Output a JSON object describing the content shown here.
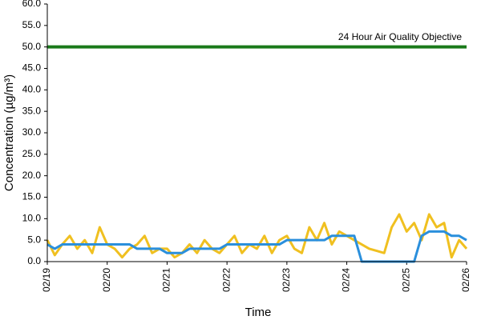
{
  "chart_data": {
    "type": "line",
    "x_label": "Time",
    "y_label": "Concentration (µg/m³)",
    "xlim": [
      0,
      7
    ],
    "xticks": [
      {
        "value": 0,
        "label": "02/19"
      },
      {
        "value": 1,
        "label": "02/20"
      },
      {
        "value": 2,
        "label": "02/21"
      },
      {
        "value": 3,
        "label": "02/22"
      },
      {
        "value": 4,
        "label": "02/23"
      },
      {
        "value": 5,
        "label": "02/24"
      },
      {
        "value": 6,
        "label": "02/25"
      },
      {
        "value": 7,
        "label": "02/26"
      }
    ],
    "ylim": [
      0,
      60
    ],
    "yticks": [
      {
        "value": 0,
        "label": "0.0"
      },
      {
        "value": 5,
        "label": "5.0"
      },
      {
        "value": 10,
        "label": "10.0"
      },
      {
        "value": 15,
        "label": "15.0"
      },
      {
        "value": 20,
        "label": "20.0"
      },
      {
        "value": 25,
        "label": "25.0"
      },
      {
        "value": 30,
        "label": "30.0"
      },
      {
        "value": 35,
        "label": "35.0"
      },
      {
        "value": 40,
        "label": "40.0"
      },
      {
        "value": 45,
        "label": "45.0"
      },
      {
        "value": 50,
        "label": "50.0"
      },
      {
        "value": 55,
        "label": "55.0"
      },
      {
        "value": 60,
        "label": "60.0"
      }
    ],
    "grid": false,
    "objective": {
      "value": 50,
      "label": "24 Hour Air Quality Objective",
      "color": "#1a7a1a"
    },
    "x": [
      0,
      0.125,
      0.25,
      0.375,
      0.5,
      0.625,
      0.75,
      0.875,
      1,
      1.125,
      1.25,
      1.375,
      1.5,
      1.625,
      1.75,
      1.875,
      2,
      2.125,
      2.25,
      2.375,
      2.5,
      2.625,
      2.75,
      2.875,
      3,
      3.125,
      3.25,
      3.375,
      3.5,
      3.625,
      3.75,
      3.875,
      4,
      4.125,
      4.25,
      4.375,
      4.5,
      4.625,
      4.75,
      4.875,
      5,
      5.125,
      5.25,
      5.375,
      5.5,
      5.625,
      5.75,
      5.875,
      6,
      6.125,
      6.25,
      6.375,
      6.5,
      6.625,
      6.75,
      6.875,
      7
    ],
    "series": [
      {
        "color": "#f0c020",
        "values": [
          5,
          1.5,
          4,
          6,
          3,
          5,
          2,
          8,
          4,
          3,
          1,
          3,
          4,
          6,
          2,
          3,
          3,
          1,
          2,
          4,
          2,
          5,
          3,
          2,
          4,
          6,
          2,
          4,
          3,
          6,
          2,
          5,
          6,
          3,
          2,
          8,
          5,
          9,
          4,
          7,
          6,
          5,
          4,
          3,
          2.5,
          2,
          8,
          11,
          7,
          9,
          5,
          11,
          8,
          9,
          1,
          5,
          3
        ]
      },
      {
        "color": "#2a8fdc",
        "values": [
          4,
          3,
          4,
          4,
          4,
          4,
          4,
          4,
          4,
          4,
          4,
          4,
          3,
          3,
          3,
          3,
          2,
          2,
          2,
          3,
          3,
          3,
          3,
          3,
          4,
          4,
          4,
          4,
          4,
          4,
          4,
          4,
          5,
          5,
          5,
          5,
          5,
          5,
          6,
          6,
          6,
          6,
          0,
          0,
          0,
          0,
          0,
          0,
          0,
          0,
          6,
          7,
          7,
          7,
          6,
          6,
          5
        ]
      }
    ]
  }
}
